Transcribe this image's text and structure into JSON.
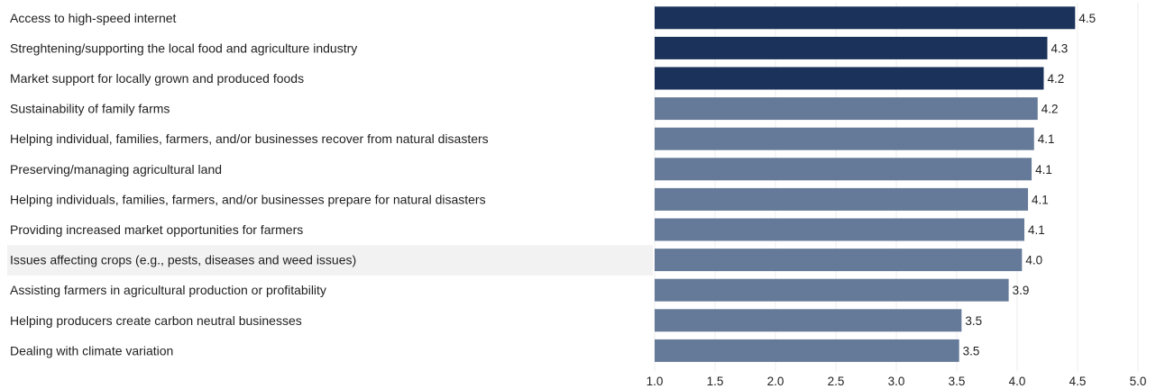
{
  "chart_data": {
    "type": "bar",
    "orientation": "horizontal",
    "categories": [
      "Access to high-speed internet",
      "Streghtening/supporting the local food and agriculture industry",
      "Market support for locally grown and produced foods",
      "Sustainability of family farms",
      "Helping individual, families, farmers, and/or businesses recover from natural disasters",
      "Preserving/managing agricultural land",
      "Helping individuals, families, farmers, and/or businesses prepare for natural disasters",
      "Providing increased market opportunities for farmers",
      "Issues affecting crops (e.g., pests, diseases and weed issues)",
      "Assisting farmers in agricultural production or profitability",
      "Helping producers create carbon neutral businesses",
      "Dealing with climate variation"
    ],
    "values": [
      4.48,
      4.25,
      4.22,
      4.17,
      4.14,
      4.12,
      4.09,
      4.06,
      4.04,
      3.93,
      3.54,
      3.52
    ],
    "value_labels": [
      "4.5",
      "4.3",
      "4.2",
      "4.2",
      "4.1",
      "4.1",
      "4.1",
      "4.1",
      "4.0",
      "3.9",
      "3.5",
      "3.5"
    ],
    "highlighted": [
      true,
      true,
      true,
      false,
      false,
      false,
      false,
      false,
      false,
      false,
      false,
      false
    ],
    "selected_row": 8,
    "xlim": [
      1.0,
      5.0
    ],
    "xticks": [
      "1.0",
      "1.5",
      "2.0",
      "2.5",
      "3.0",
      "3.5",
      "4.0",
      "4.5",
      "5.0"
    ],
    "title": "",
    "xlabel": "",
    "ylabel": "",
    "grid": "vertical",
    "colors": {
      "highlight_bar": "#1b335a",
      "bar": "#657a98",
      "gridline": "#ececec",
      "selected_row_bg": "#f2f2f2",
      "text": "#1f1f1f"
    }
  }
}
